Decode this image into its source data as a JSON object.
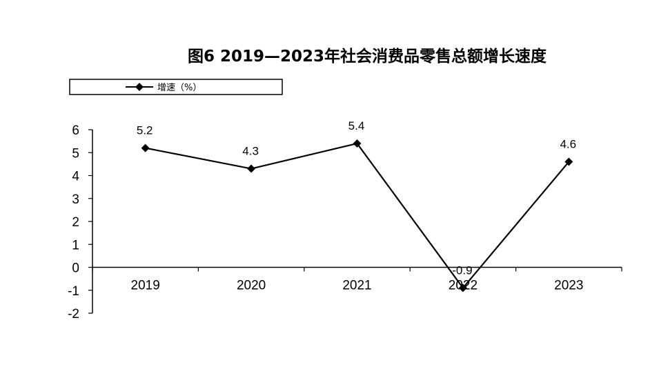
{
  "chart_data": {
    "type": "line",
    "title": "图6  2019—2023年社会消费品零售总额增长速度",
    "categories": [
      "2019",
      "2020",
      "2021",
      "2022",
      "2023"
    ],
    "series": [
      {
        "name": "增速（%）",
        "values": [
          5.2,
          4.3,
          5.4,
          -0.9,
          4.6
        ]
      }
    ],
    "data_labels": [
      "5.2",
      "4.3",
      "5.4",
      "-0.9",
      "4.6"
    ],
    "y_ticks": [
      "6",
      "5",
      "4",
      "3",
      "2",
      "1",
      "0",
      "-1",
      "-2"
    ],
    "ylim": [
      -2,
      6
    ],
    "xlabel": "",
    "ylabel": "",
    "grid": false,
    "legend_position": "top-left",
    "line_color": "#000000",
    "marker": "diamond"
  }
}
